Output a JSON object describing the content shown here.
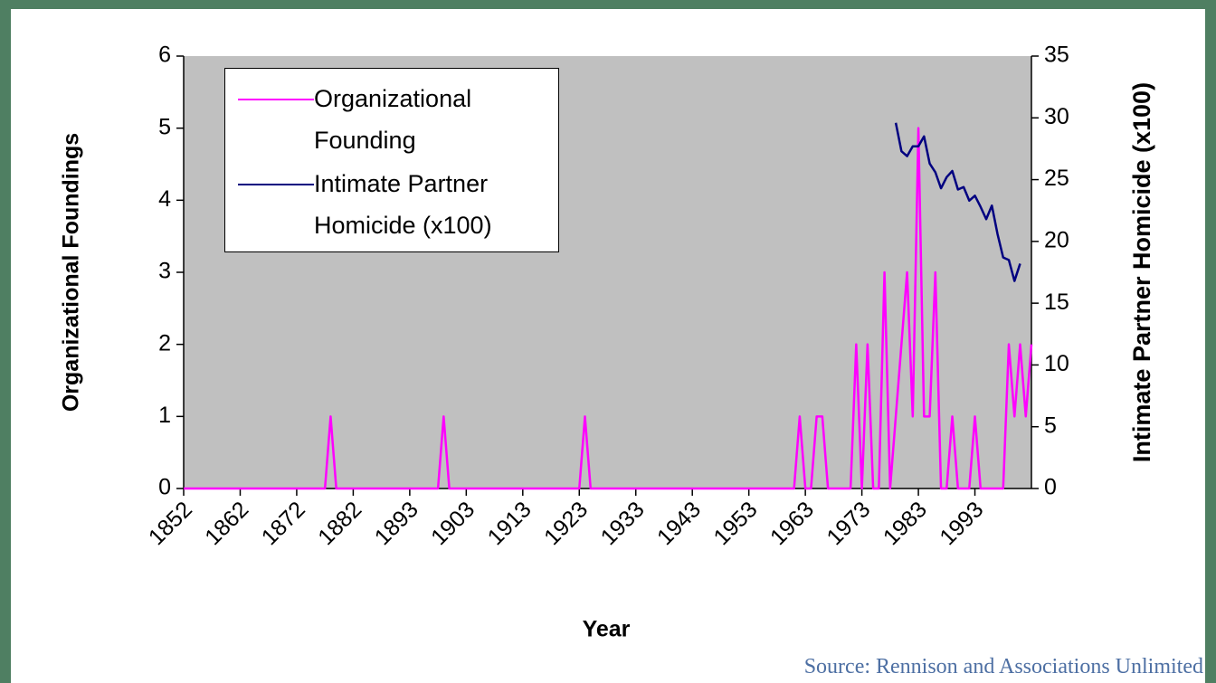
{
  "chart_data": {
    "type": "line",
    "xlabel": "Year",
    "ylabel": "Organizational Foundings",
    "y2label": "Intimate Partner Homicide (x100)",
    "source": "Source: Rennison and Associations Unlimited",
    "legend": "upper left",
    "categories": [
      "1852",
      null,
      null,
      null,
      null,
      null,
      null,
      null,
      null,
      null,
      "1862",
      null,
      null,
      null,
      null,
      null,
      null,
      null,
      null,
      null,
      "1872",
      null,
      null,
      null,
      null,
      null,
      null,
      null,
      null,
      null,
      "1882",
      null,
      null,
      null,
      null,
      null,
      null,
      null,
      null,
      null,
      "1893",
      null,
      null,
      null,
      null,
      null,
      null,
      null,
      null,
      null,
      "1903",
      null,
      null,
      null,
      null,
      null,
      null,
      null,
      null,
      null,
      "1913",
      null,
      null,
      null,
      null,
      null,
      null,
      null,
      null,
      null,
      "1923",
      null,
      null,
      null,
      null,
      null,
      null,
      null,
      null,
      null,
      "1933",
      null,
      null,
      null,
      null,
      null,
      null,
      null,
      null,
      null,
      "1943",
      null,
      null,
      null,
      null,
      null,
      null,
      null,
      null,
      null,
      "1953",
      null,
      null,
      null,
      null,
      null,
      null,
      null,
      null,
      null,
      "1963",
      null,
      null,
      null,
      null,
      null,
      null,
      null,
      null,
      null,
      "1973",
      null,
      null,
      null,
      null,
      null,
      null,
      null,
      null,
      null,
      "1983",
      null,
      null,
      null,
      null,
      null,
      null,
      null,
      null,
      null,
      "1993",
      null,
      null,
      null,
      null,
      null,
      null,
      null,
      null,
      null,
      null
    ],
    "series": [
      {
        "name": "Organizational Founding",
        "color": "#ff00ff",
        "values": [
          0,
          0,
          0,
          0,
          0,
          0,
          0,
          0,
          0,
          0,
          0,
          0,
          0,
          0,
          0,
          0,
          0,
          0,
          0,
          0,
          0,
          0,
          0,
          0,
          0,
          0,
          1,
          0,
          0,
          0,
          0,
          0,
          0,
          0,
          0,
          0,
          0,
          0,
          0,
          0,
          0,
          0,
          0,
          0,
          0,
          0,
          1,
          0,
          0,
          0,
          0,
          0,
          0,
          0,
          0,
          0,
          0,
          0,
          0,
          0,
          0,
          0,
          0,
          0,
          0,
          0,
          0,
          0,
          0,
          0,
          0,
          1,
          0,
          0,
          0,
          0,
          0,
          0,
          0,
          0,
          0,
          0,
          0,
          0,
          0,
          0,
          0,
          0,
          0,
          0,
          0,
          0,
          0,
          0,
          0,
          0,
          0,
          0,
          0,
          0,
          0,
          0,
          0,
          0,
          0,
          0,
          0,
          0,
          0,
          1,
          0,
          0,
          1,
          1,
          0,
          0,
          0,
          0,
          0,
          2,
          0,
          2,
          0,
          0,
          3,
          0,
          1,
          2,
          3,
          1,
          5,
          1,
          1,
          3,
          0,
          0,
          1,
          0,
          0,
          0,
          1,
          0,
          0,
          0,
          0,
          0,
          2,
          1,
          2,
          1,
          2
        ]
      },
      {
        "name": "Intimate Partner Homicide (x100)",
        "color": "#000080",
        "axis": "y2",
        "values": [
          null,
          null,
          null,
          null,
          null,
          null,
          null,
          null,
          null,
          null,
          null,
          null,
          null,
          null,
          null,
          null,
          null,
          null,
          null,
          null,
          null,
          null,
          null,
          null,
          null,
          null,
          null,
          null,
          null,
          null,
          null,
          null,
          null,
          null,
          null,
          null,
          null,
          null,
          null,
          null,
          null,
          null,
          null,
          null,
          null,
          null,
          null,
          null,
          null,
          null,
          null,
          null,
          null,
          null,
          null,
          null,
          null,
          null,
          null,
          null,
          null,
          null,
          null,
          null,
          null,
          null,
          null,
          null,
          null,
          null,
          null,
          null,
          null,
          null,
          null,
          null,
          null,
          null,
          null,
          null,
          null,
          null,
          null,
          null,
          null,
          null,
          null,
          null,
          null,
          null,
          null,
          null,
          null,
          null,
          null,
          null,
          null,
          null,
          null,
          null,
          null,
          null,
          null,
          null,
          null,
          null,
          null,
          null,
          null,
          null,
          null,
          null,
          null,
          null,
          null,
          null,
          null,
          null,
          null,
          null,
          null,
          null,
          null,
          null,
          null,
          null,
          29.6,
          27.3,
          26.9,
          27.7,
          27.7,
          28.5,
          26.3,
          25.6,
          24.3,
          25.2,
          25.7,
          24.2,
          24.4,
          23.3,
          23.7,
          22.8,
          21.8,
          22.9,
          20.6,
          18.7,
          18.5,
          16.8,
          18.2,
          null,
          null
        ]
      }
    ],
    "ylim": [
      0,
      6
    ],
    "yticks": [
      0,
      1,
      2,
      3,
      4,
      5,
      6
    ],
    "y2lim": [
      0,
      35
    ],
    "y2ticks": [
      0,
      5,
      10,
      15,
      20,
      25,
      30,
      35
    ],
    "plot_background": "#c0c0c0"
  }
}
